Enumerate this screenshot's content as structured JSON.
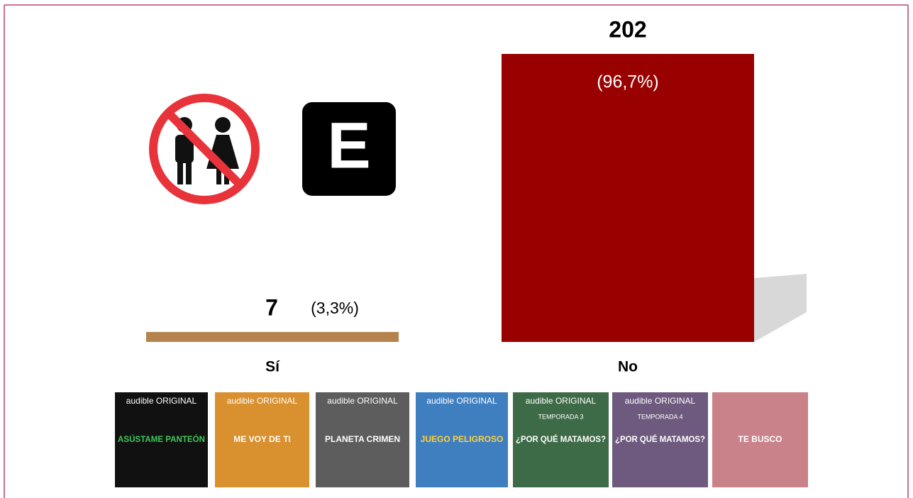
{
  "chart_data": {
    "type": "bar",
    "categories": [
      "Sí",
      "No"
    ],
    "values": [
      7,
      202
    ],
    "colors": [
      "#b5834d",
      "#990000"
    ],
    "shares": [
      3.3,
      96.7
    ],
    "share_labels": [
      "(3,3%)",
      "(96,7%)"
    ]
  },
  "rating_badge": "E",
  "covers": [
    {
      "brand": "audible ORIGINAL",
      "title": "ASÚSTAME PANTEÓN",
      "color": "#111111",
      "ink": "#3ec95a"
    },
    {
      "brand": "audible ORIGINAL",
      "title": "ME VOY DE TI",
      "color": "#d9902e",
      "ink": "#ffffff"
    },
    {
      "brand": "audible ORIGINAL",
      "title": "PLANETA CRIMEN",
      "color": "#5d5d5d",
      "ink": "#ffffff"
    },
    {
      "brand": "audible ORIGINAL",
      "title": "JUEGO PELIGROSO",
      "color": "#3f7fc0",
      "ink": "#ffd23a"
    },
    {
      "brand": "audible ORIGINAL",
      "season": "TEMPORADA 3",
      "title": "¿POR QUÉ MATAMOS?",
      "color": "#3e6b47",
      "ink": "#ffffff"
    },
    {
      "brand": "audible ORIGINAL",
      "season": "TEMPORADA 4",
      "title": "¿POR QUÉ MATAMOS?",
      "color": "#6e5a7e",
      "ink": "#ffffff"
    },
    {
      "title": "TE BUSCO",
      "color": "#c9828a",
      "ink": "#ffffff"
    }
  ]
}
